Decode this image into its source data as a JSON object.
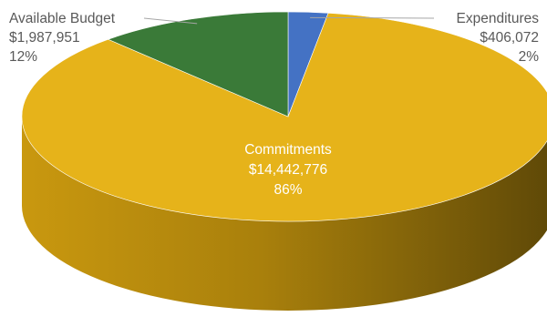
{
  "chart_data": {
    "type": "pie",
    "style": "3d",
    "slices": [
      {
        "name": "Available Budget",
        "value": 1987951,
        "value_label": "$1,987,951",
        "percent_label": "12%",
        "color": "#3A7A38"
      },
      {
        "name": "Expenditures",
        "value": 406072,
        "value_label": "$406,072",
        "percent_label": "2%",
        "color": "#4472C4"
      },
      {
        "name": "Commitments",
        "value": 14442776,
        "value_label": "$14,442,776",
        "percent_label": "86%",
        "color": "#E6B31A"
      }
    ]
  }
}
